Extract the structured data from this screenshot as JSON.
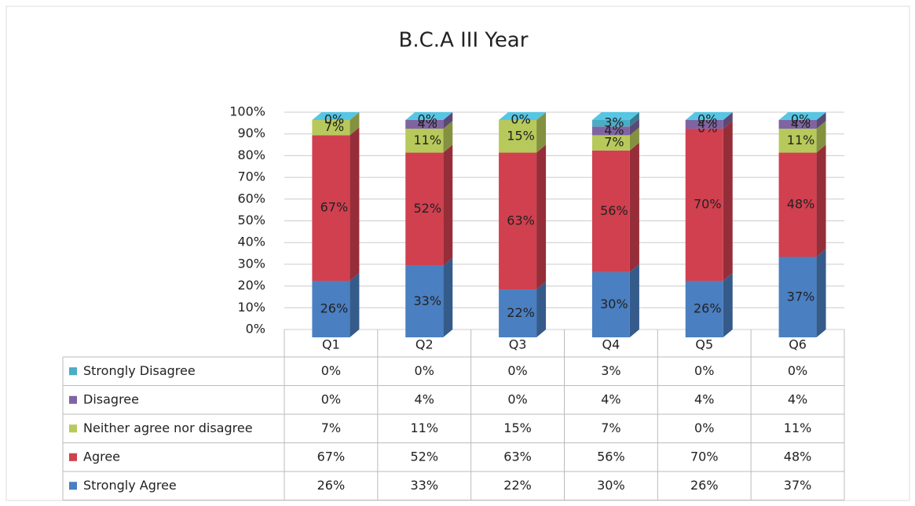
{
  "chart_data": {
    "type": "stacked-bar-3d",
    "title": "B.C.A III Year",
    "categories": [
      "Q1",
      "Q2",
      "Q3",
      "Q4",
      "Q5",
      "Q6"
    ],
    "series": [
      {
        "name": "Strongly Agree",
        "color": "#4a7fc1",
        "values": [
          26,
          33,
          22,
          30,
          26,
          37
        ],
        "value_labels": [
          "26%",
          "33%",
          "22%",
          "30%",
          "26%",
          "37%"
        ]
      },
      {
        "name": "Agree",
        "color": "#d0404f",
        "values": [
          67,
          52,
          63,
          56,
          70,
          48
        ],
        "value_labels": [
          "67%",
          "52%",
          "63%",
          "56%",
          "70%",
          "48%"
        ]
      },
      {
        "name": "Neither agree nor disagree",
        "color": "#b7c95a",
        "values": [
          7,
          11,
          15,
          7,
          0,
          11
        ],
        "value_labels": [
          "7%",
          "11%",
          "15%",
          "7%",
          "0%",
          "11%"
        ]
      },
      {
        "name": "Disagree",
        "color": "#8064a2",
        "values": [
          0,
          4,
          0,
          4,
          4,
          4
        ],
        "value_labels": [
          "0%",
          "4%",
          "0%",
          "4%",
          "4%",
          "4%"
        ]
      },
      {
        "name": "Strongly Disagree",
        "color": "#4bacc6",
        "values": [
          0,
          0,
          0,
          3,
          0,
          0
        ],
        "value_labels": [
          "0%",
          "0%",
          "0%",
          "3%",
          "0%",
          "0%"
        ]
      }
    ],
    "ylim": [
      0,
      100
    ],
    "yticks": [
      {
        "value": 0,
        "label": "0%"
      },
      {
        "value": 10,
        "label": "10%"
      },
      {
        "value": 20,
        "label": "20%"
      },
      {
        "value": 30,
        "label": "30%"
      },
      {
        "value": 40,
        "label": "40%"
      },
      {
        "value": 50,
        "label": "50%"
      },
      {
        "value": 60,
        "label": "60%"
      },
      {
        "value": 70,
        "label": "70%"
      },
      {
        "value": 80,
        "label": "80%"
      },
      {
        "value": 90,
        "label": "90%"
      },
      {
        "value": 100,
        "label": "100%"
      }
    ],
    "grid": true,
    "data_table": true
  }
}
